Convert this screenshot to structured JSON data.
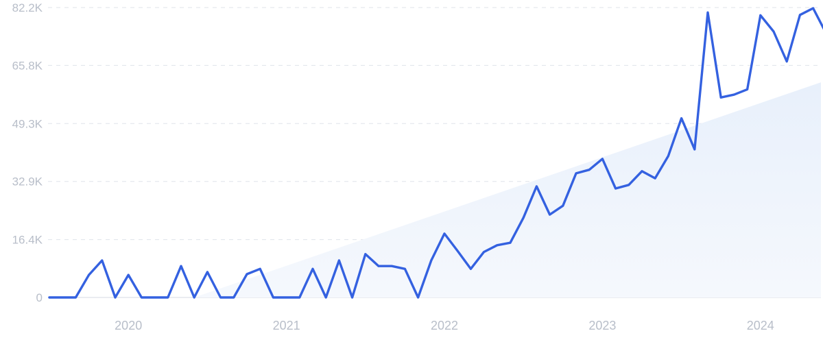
{
  "chart_data": {
    "type": "line",
    "title": "",
    "xlabel": "",
    "ylabel": "",
    "colors": {
      "line": "#3461e0",
      "trend_fill": "#eef4fc",
      "grid": "#dfe3ea",
      "tick_text": "#b8bec9"
    },
    "grid": true,
    "ylim": [
      0,
      82200
    ],
    "y_ticks": [
      {
        "value": 0,
        "label": "0"
      },
      {
        "value": 16400,
        "label": "16.4K"
      },
      {
        "value": 32900,
        "label": "32.9K"
      },
      {
        "value": 49300,
        "label": "49.3K"
      },
      {
        "value": 65800,
        "label": "65.8K"
      },
      {
        "value": 82200,
        "label": "82.2K"
      }
    ],
    "x_ticks": [
      {
        "date": "2020-01",
        "label": "2020"
      },
      {
        "date": "2021-01",
        "label": "2021"
      },
      {
        "date": "2022-01",
        "label": "2022"
      },
      {
        "date": "2023-01",
        "label": "2023"
      },
      {
        "date": "2024-01",
        "label": "2024"
      }
    ],
    "series": [
      {
        "x": [
          "2019-07",
          "2019-08",
          "2019-09",
          "2019-10",
          "2019-11",
          "2019-12",
          "2020-01",
          "2020-02",
          "2020-03",
          "2020-04",
          "2020-05",
          "2020-06",
          "2020-07",
          "2020-08",
          "2020-09",
          "2020-10",
          "2020-11",
          "2020-12",
          "2021-01",
          "2021-02",
          "2021-03",
          "2021-04",
          "2021-05",
          "2021-06",
          "2021-07",
          "2021-08",
          "2021-09",
          "2021-10",
          "2021-11",
          "2021-12",
          "2022-01",
          "2022-02",
          "2022-03",
          "2022-04",
          "2022-05",
          "2022-06",
          "2022-07",
          "2022-08",
          "2022-09",
          "2022-10",
          "2022-11",
          "2022-12",
          "2023-01",
          "2023-02",
          "2023-03",
          "2023-04",
          "2023-05",
          "2023-06",
          "2023-07",
          "2023-08",
          "2023-09",
          "2023-10",
          "2023-11",
          "2023-12",
          "2024-01",
          "2024-02",
          "2024-03",
          "2024-04",
          "2024-05",
          "2024-06",
          "2024-07"
        ],
        "y": [
          0,
          0,
          0,
          6400,
          10500,
          0,
          6400,
          0,
          0,
          0,
          8900,
          0,
          7200,
          0,
          0,
          6600,
          8100,
          0,
          0,
          0,
          8100,
          0,
          10500,
          0,
          12300,
          8900,
          8900,
          8100,
          0,
          10500,
          18100,
          13200,
          8100,
          12900,
          14800,
          15500,
          22600,
          31500,
          23500,
          26000,
          35200,
          36200,
          39300,
          30900,
          31900,
          35800,
          33800,
          40100,
          50800,
          42000,
          80800,
          56700,
          57500,
          59000,
          80000,
          75400,
          66900,
          80100,
          82000,
          74800,
          74000
        ]
      }
    ],
    "trend": {
      "start": {
        "date": "2020-06",
        "value": 0
      },
      "end": {
        "date": "2024-07",
        "value": 61000
      }
    }
  }
}
